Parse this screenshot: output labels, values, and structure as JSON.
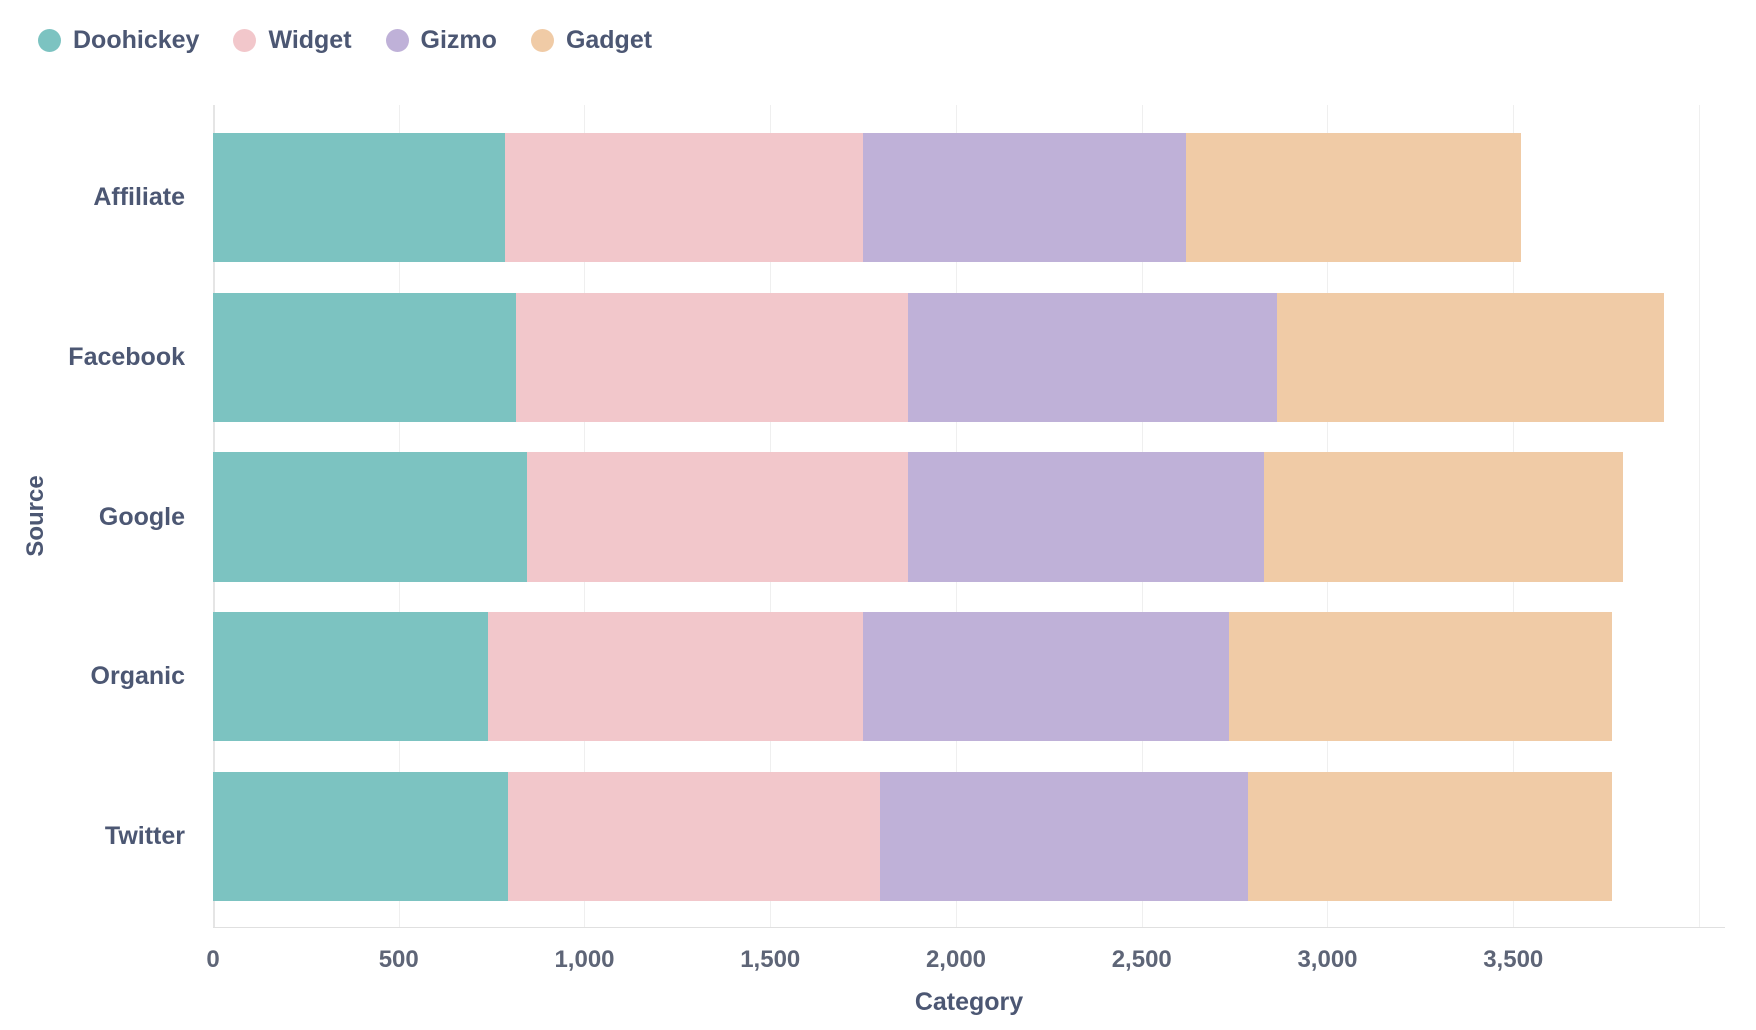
{
  "chart_data": {
    "type": "bar",
    "orientation": "horizontal",
    "stacked": true,
    "title": "",
    "xlabel": "Category",
    "ylabel": "Source",
    "categories": [
      "Affiliate",
      "Facebook",
      "Google",
      "Organic",
      "Twitter"
    ],
    "series": [
      {
        "name": "Doohickey",
        "color": "#7CC3C1",
        "values": [
          785,
          815,
          845,
          740,
          795
        ]
      },
      {
        "name": "Widget",
        "color": "#F2C7CB",
        "values": [
          965,
          1055,
          1025,
          1010,
          1000
        ]
      },
      {
        "name": "Gizmo",
        "color": "#BFB1D8",
        "values": [
          870,
          995,
          960,
          985,
          990
        ]
      },
      {
        "name": "Gadget",
        "color": "#F0CBA6",
        "values": [
          900,
          1040,
          965,
          1030,
          980
        ]
      }
    ],
    "totals": [
      3520,
      3905,
      3795,
      3765,
      3765
    ],
    "xlim": [
      0,
      4070
    ],
    "x_ticks": [
      0,
      500,
      1000,
      1500,
      2000,
      2500,
      3000,
      3500
    ],
    "x_tick_labels": [
      "0",
      "500",
      "1,000",
      "1,500",
      "2,000",
      "2,500",
      "3,000",
      "3,500"
    ],
    "gridline_values": [
      0,
      500,
      1000,
      1500,
      2000,
      2500,
      3000,
      3500,
      4000
    ],
    "grid": true,
    "legend_position": "top-left"
  },
  "colors": {
    "text": "#4C5773",
    "tick_text": "#5E6577",
    "gridline": "#EFEFEF",
    "axis_line": "#E0E0E0",
    "background": "#FFFFFF"
  }
}
